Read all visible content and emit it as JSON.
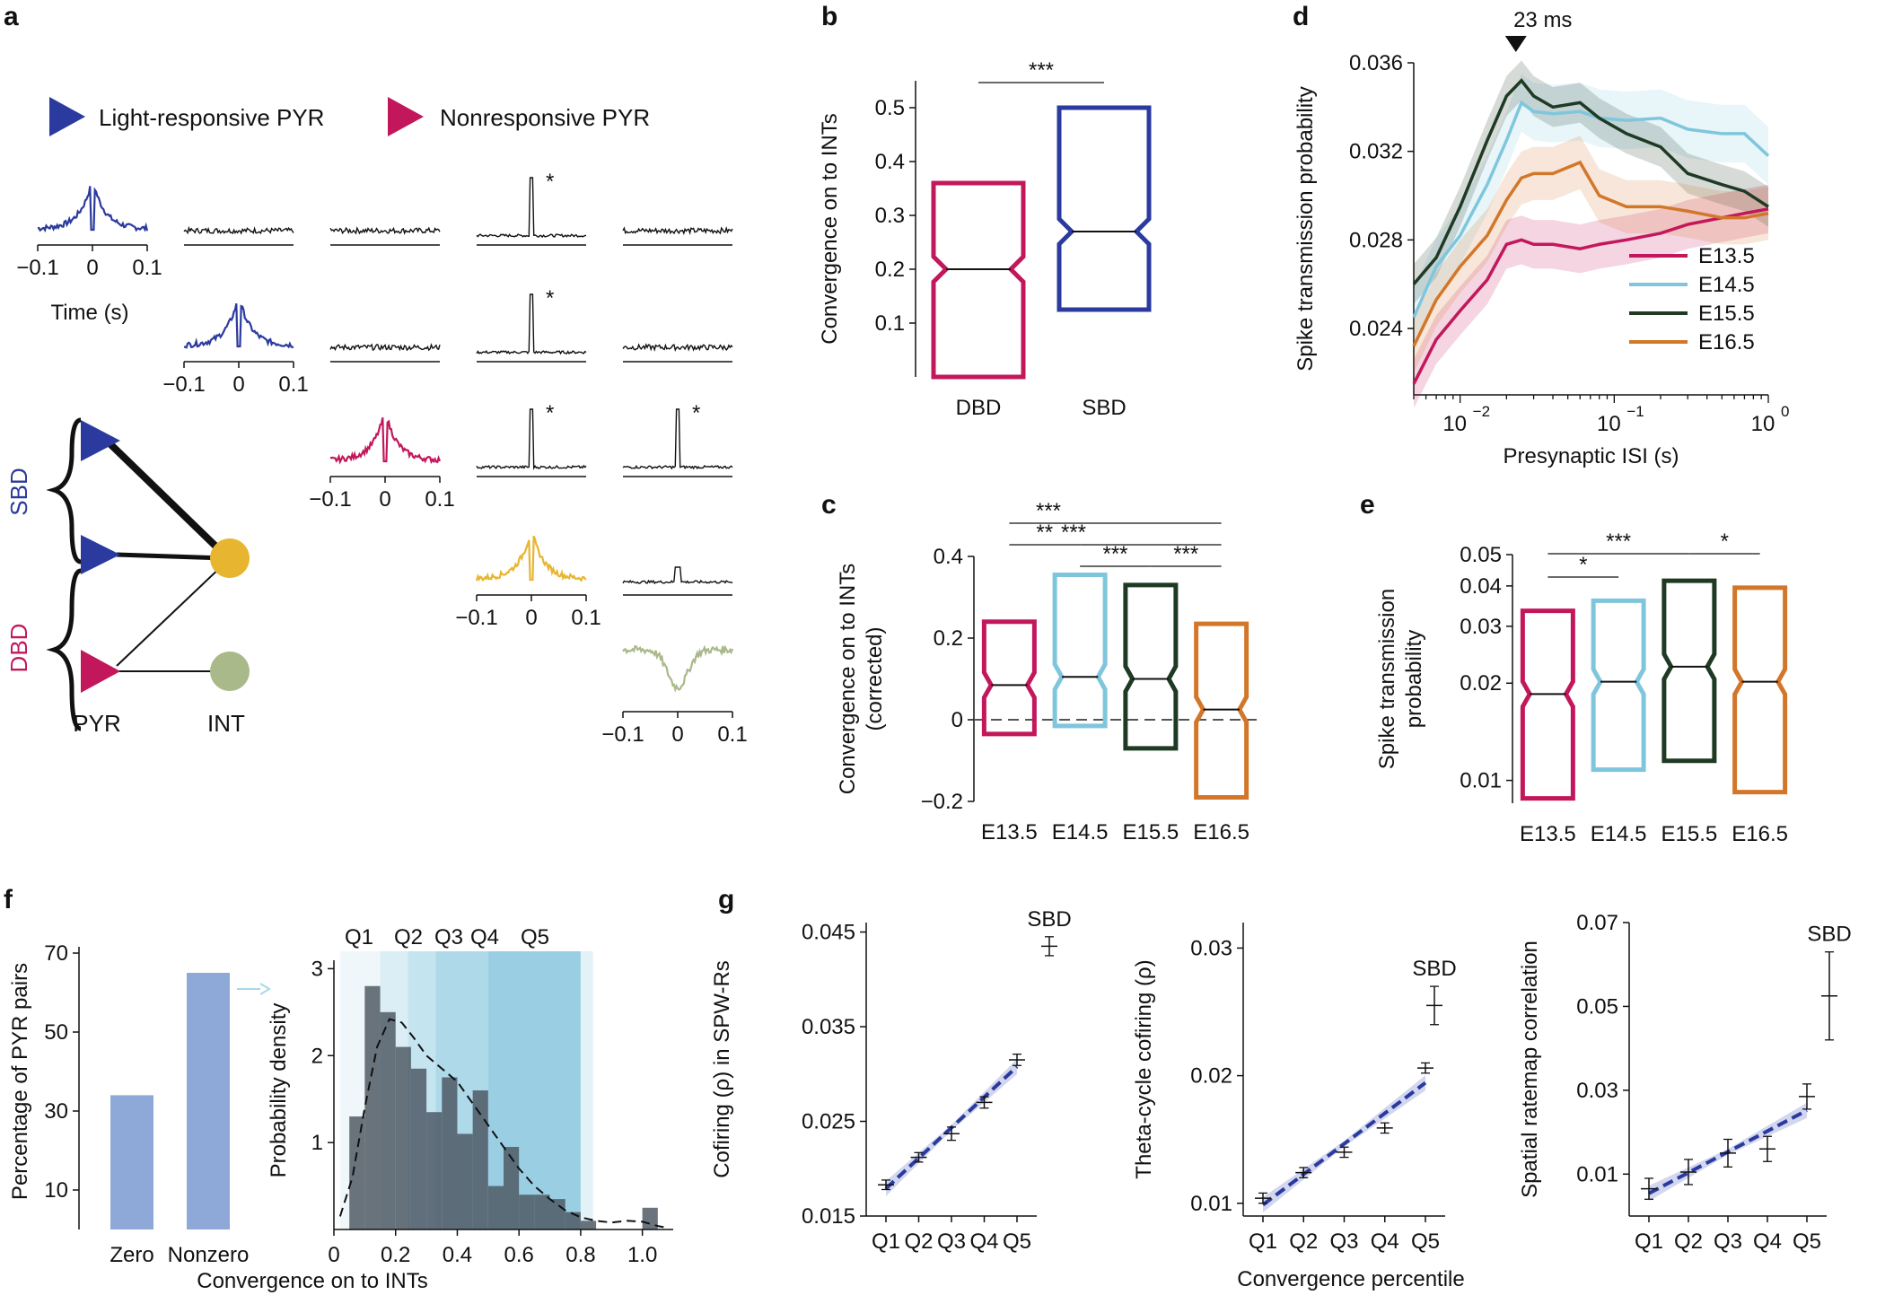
{
  "panels": {
    "a": "a",
    "b": "b",
    "c": "c",
    "d": "d",
    "e": "e",
    "f": "f",
    "g": "g"
  },
  "panel_a": {
    "legend_light": "Light-responsive PYR",
    "legend_non": "Nonresponsive PYR",
    "time_label": "Time (s)",
    "tick_neg": "−0.1",
    "tick_zero": "0",
    "tick_pos": "0.1",
    "star": "*",
    "sbd": "SBD",
    "dbd": "DBD",
    "pyr": "PYR",
    "int": "INT",
    "colors": {
      "blue": "#2B3A9E",
      "red": "#C2185B",
      "yellow": "#E8B530",
      "olive": "#A9B98A"
    }
  },
  "chart_data": [
    {
      "id": "b",
      "type": "box",
      "ylabel": "Convergence on to INTs",
      "yticks": [
        "0.1",
        "0.2",
        "0.3",
        "0.4",
        "0.5"
      ],
      "ylim": [
        0,
        0.55
      ],
      "categories": [
        "DBD",
        "SBD"
      ],
      "boxes": [
        {
          "name": "DBD",
          "q1": 0,
          "median": 0.2,
          "q3": 0.36,
          "color": "#C2185B"
        },
        {
          "name": "SBD",
          "q1": 0.125,
          "median": 0.27,
          "q3": 0.5,
          "color": "#2B3A9E"
        }
      ],
      "significance": [
        {
          "pair": "DBD-SBD",
          "label": "***"
        }
      ]
    },
    {
      "id": "c",
      "type": "box",
      "ylabel": "Convergence on to INTs",
      "ylabel2": "(corrected)",
      "yticks": [
        "−0.2",
        "0",
        "0.2",
        "0.4"
      ],
      "ylim": [
        -0.2,
        0.4
      ],
      "categories": [
        "E13.5",
        "E14.5",
        "E15.5",
        "E16.5"
      ],
      "boxes": [
        {
          "name": "E13.5",
          "q1": -0.035,
          "median": 0.085,
          "q3": 0.24,
          "color": "#C2185B"
        },
        {
          "name": "E14.5",
          "q1": -0.015,
          "median": 0.105,
          "q3": 0.355,
          "color": "#7FC6DD"
        },
        {
          "name": "E15.5",
          "q1": -0.07,
          "median": 0.1,
          "q3": 0.33,
          "color": "#1E3A24"
        },
        {
          "name": "E16.5",
          "q1": -0.19,
          "median": 0.025,
          "q3": 0.235,
          "color": "#D2772A"
        }
      ],
      "significance": [
        {
          "pair": "E13.5-E16.5",
          "label": "***"
        },
        {
          "pair": "E13.5-E14.5",
          "label": "**"
        },
        {
          "pair": "E14.5-E16.5",
          "label": "***"
        },
        {
          "pair": "E14.5-E15.5",
          "label": "***"
        },
        {
          "pair": "E15.5-E16.5",
          "label": "***"
        }
      ]
    },
    {
      "id": "d",
      "type": "line",
      "xlabel": "Presynaptic ISI (s)",
      "ylabel": "Spike transmission probability",
      "xscale": "log",
      "xlim": [
        0.005,
        1
      ],
      "xticks": [
        "10",
        "−2",
        "10",
        "−1",
        "10",
        "0"
      ],
      "ylim": [
        0.021,
        0.036
      ],
      "yticks": [
        "0.024",
        "0.028",
        "0.032",
        "0.036"
      ],
      "marker_label": "23 ms",
      "marker_x": 0.023,
      "series": [
        {
          "name": "E13.5",
          "color": "#C2185B",
          "x": [
            0.005,
            0.007,
            0.01,
            0.015,
            0.02,
            0.025,
            0.03,
            0.04,
            0.06,
            0.08,
            0.12,
            0.2,
            0.3,
            0.5,
            0.7,
            1.0
          ],
          "y": [
            0.0215,
            0.0235,
            0.0248,
            0.0262,
            0.0278,
            0.028,
            0.0278,
            0.0278,
            0.0276,
            0.0278,
            0.028,
            0.0283,
            0.0287,
            0.029,
            0.0292,
            0.0294
          ]
        },
        {
          "name": "E14.5",
          "color": "#7FC6DD",
          "x": [
            0.005,
            0.007,
            0.01,
            0.015,
            0.02,
            0.025,
            0.03,
            0.04,
            0.06,
            0.08,
            0.12,
            0.2,
            0.3,
            0.5,
            0.7,
            1.0
          ],
          "y": [
            0.0245,
            0.0268,
            0.0282,
            0.0305,
            0.0325,
            0.0342,
            0.0338,
            0.0337,
            0.0338,
            0.0335,
            0.0334,
            0.0335,
            0.033,
            0.0328,
            0.0328,
            0.0318
          ]
        },
        {
          "name": "E15.5",
          "color": "#1E3A24",
          "x": [
            0.005,
            0.007,
            0.01,
            0.015,
            0.02,
            0.025,
            0.03,
            0.04,
            0.06,
            0.08,
            0.12,
            0.2,
            0.3,
            0.5,
            0.7,
            1.0
          ],
          "y": [
            0.026,
            0.0272,
            0.0295,
            0.0325,
            0.0345,
            0.0352,
            0.0345,
            0.034,
            0.0342,
            0.0335,
            0.0328,
            0.0322,
            0.031,
            0.0305,
            0.0302,
            0.0295
          ]
        },
        {
          "name": "E16.5",
          "color": "#D2772A",
          "x": [
            0.005,
            0.007,
            0.01,
            0.015,
            0.02,
            0.025,
            0.03,
            0.04,
            0.06,
            0.08,
            0.12,
            0.2,
            0.3,
            0.5,
            0.7,
            1.0
          ],
          "y": [
            0.0232,
            0.0253,
            0.0268,
            0.0282,
            0.0298,
            0.0308,
            0.031,
            0.031,
            0.0315,
            0.03,
            0.0295,
            0.0295,
            0.0293,
            0.029,
            0.029,
            0.0292
          ]
        }
      ]
    },
    {
      "id": "e",
      "type": "box",
      "ylabel": "Spike transmission",
      "ylabel2": "probability",
      "yscale": "log",
      "ylim": [
        0.0085,
        0.05
      ],
      "yticks": [
        "0.01",
        "0.02",
        "0.03",
        "0.04",
        "0.05"
      ],
      "categories": [
        "E13.5",
        "E14.5",
        "E15.5",
        "E16.5"
      ],
      "boxes": [
        {
          "name": "E13.5",
          "q1": 0.0088,
          "median": 0.0185,
          "q3": 0.0335,
          "color": "#C2185B"
        },
        {
          "name": "E14.5",
          "q1": 0.0108,
          "median": 0.0202,
          "q3": 0.036,
          "color": "#7FC6DD"
        },
        {
          "name": "E15.5",
          "q1": 0.0115,
          "median": 0.0225,
          "q3": 0.0415,
          "color": "#1E3A24"
        },
        {
          "name": "E16.5",
          "q1": 0.0092,
          "median": 0.0202,
          "q3": 0.0395,
          "color": "#D2772A"
        }
      ],
      "significance": [
        {
          "pair": "E13.5-E15.5",
          "label": "***"
        },
        {
          "pair": "E13.5-E14.5",
          "label": "*"
        },
        {
          "pair": "E15.5-E16.5",
          "label": "*"
        }
      ]
    },
    {
      "id": "f_bar",
      "type": "bar",
      "ylabel": "Percentage of PYR pairs",
      "categories": [
        "Zero",
        "Nonzero"
      ],
      "values": [
        34,
        65
      ],
      "ylim": [
        0,
        75
      ],
      "yticks": [
        "10",
        "30",
        "50",
        "70"
      ],
      "color": "#8EA8D8"
    },
    {
      "id": "f_hist",
      "type": "histogram",
      "xlabel": "Convergence on to INTs",
      "ylabel": "Probability density",
      "xlim": [
        0,
        1.1
      ],
      "ylim": [
        0,
        3.2
      ],
      "xticks": [
        "0",
        "0.2",
        "0.4",
        "0.6",
        "0.8",
        "1.0"
      ],
      "yticks": [
        "1",
        "2",
        "3"
      ],
      "quintiles": [
        "Q1",
        "Q2",
        "Q3",
        "Q4",
        "Q5"
      ],
      "bin_edges": [
        0.05,
        0.1,
        0.15,
        0.2,
        0.25,
        0.3,
        0.35,
        0.4,
        0.45,
        0.5,
        0.55,
        0.6,
        0.65,
        0.7,
        0.75,
        0.8,
        0.85,
        0.9,
        0.95,
        1.0,
        1.05
      ],
      "density": [
        1.3,
        2.8,
        2.5,
        2.1,
        1.85,
        1.35,
        1.75,
        1.1,
        1.6,
        0.5,
        0.95,
        0.4,
        0.4,
        0.35,
        0.2,
        0.1,
        0,
        0,
        0,
        0.25
      ],
      "kde_x": [
        0.02,
        0.06,
        0.1,
        0.14,
        0.18,
        0.22,
        0.26,
        0.3,
        0.35,
        0.4,
        0.45,
        0.5,
        0.55,
        0.6,
        0.65,
        0.7,
        0.75,
        0.8,
        0.85,
        0.9,
        0.95,
        1.0,
        1.05,
        1.08
      ],
      "kde_y": [
        0.15,
        0.6,
        1.4,
        2.1,
        2.42,
        2.38,
        2.2,
        2.0,
        1.85,
        1.7,
        1.45,
        1.2,
        0.95,
        0.7,
        0.5,
        0.35,
        0.22,
        0.14,
        0.1,
        0.08,
        0.1,
        0.09,
        0.04,
        0.02
      ]
    },
    {
      "id": "g1",
      "type": "line",
      "ylabel": "Cofiring (ρ) in SPW-Rs",
      "categories": [
        "Q1",
        "Q2",
        "Q3",
        "Q4",
        "Q5"
      ],
      "values": [
        0.0183,
        0.0212,
        0.0237,
        0.027,
        0.0315
      ],
      "errors": [
        0.0005,
        0.0005,
        0.0007,
        0.0006,
        0.0006
      ],
      "sbd": {
        "value": 0.0435,
        "error": 0.001,
        "label": "SBD"
      },
      "ylim": [
        0.015,
        0.046
      ],
      "yticks": [
        "0.015",
        "0.025",
        "0.035",
        "0.045"
      ]
    },
    {
      "id": "g2",
      "type": "line",
      "ylabel": "Theta-cycle cofiring (ρ)",
      "xlabel": "Convergence percentile",
      "categories": [
        "Q1",
        "Q2",
        "Q3",
        "Q4",
        "Q5"
      ],
      "values": [
        0.0104,
        0.0124,
        0.014,
        0.0159,
        0.0206
      ],
      "errors": [
        0.0004,
        0.0004,
        0.0004,
        0.0004,
        0.0004
      ],
      "sbd": {
        "value": 0.0255,
        "error": 0.0015,
        "label": "SBD"
      },
      "ylim": [
        0.009,
        0.032
      ],
      "yticks": [
        "0.01",
        "0.02",
        "0.03"
      ]
    },
    {
      "id": "g3",
      "type": "line",
      "ylabel": "Spatial ratemap correlation",
      "categories": [
        "Q1",
        "Q2",
        "Q3",
        "Q4",
        "Q5"
      ],
      "values": [
        0.0065,
        0.0105,
        0.015,
        0.016,
        0.0285
      ],
      "errors": [
        0.0025,
        0.003,
        0.0033,
        0.003,
        0.003
      ],
      "sbd": {
        "value": 0.0525,
        "error": 0.0105,
        "label": "SBD"
      },
      "ylim": [
        0.0,
        0.07
      ],
      "yticks": [
        "0.01",
        "0.03",
        "0.05",
        "0.07"
      ]
    }
  ]
}
